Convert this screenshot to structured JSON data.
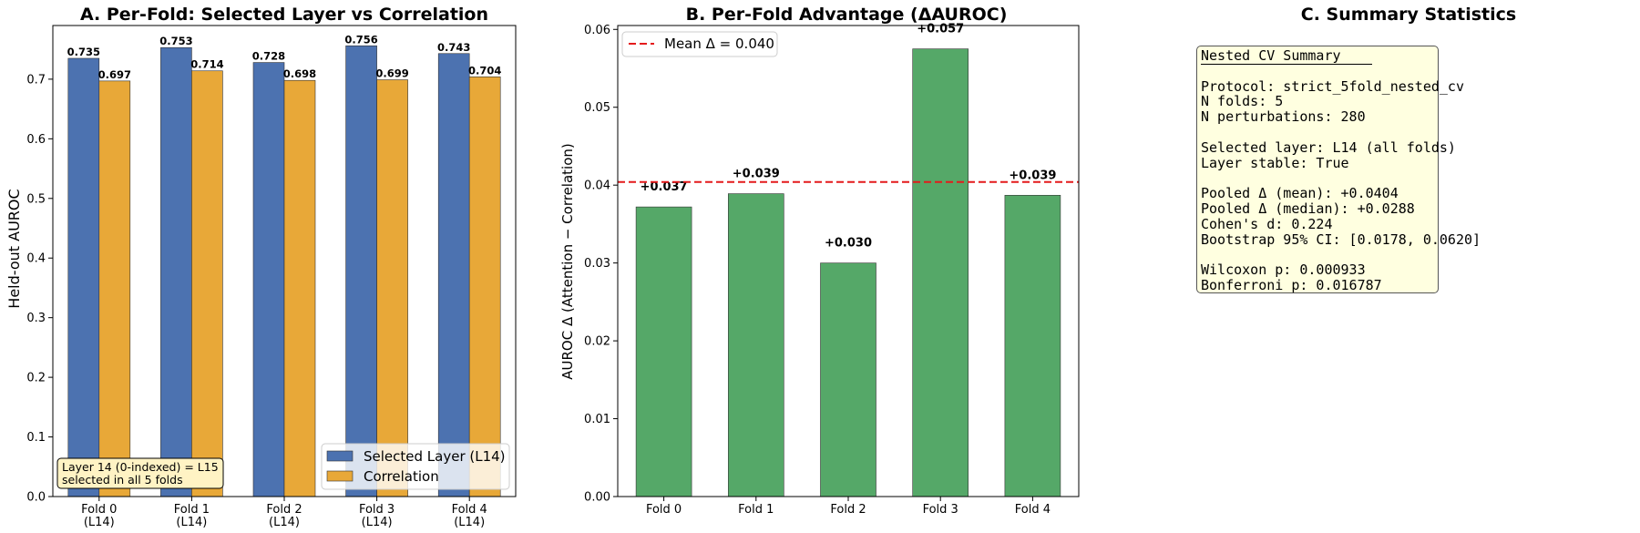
{
  "chart_data": [
    {
      "type": "bar",
      "title": "A. Per-Fold: Selected Layer vs Correlation",
      "xlabel": "",
      "ylabel": "Held-out AUROC",
      "ylim": [
        0,
        0.79
      ],
      "yticks": [
        "0.0",
        "0.1",
        "0.2",
        "0.3",
        "0.4",
        "0.5",
        "0.6",
        "0.7"
      ],
      "categories": [
        "Fold 0",
        "Fold 1",
        "Fold 2",
        "Fold 3",
        "Fold 4"
      ],
      "category_sublabels": [
        "(L14)",
        "(L14)",
        "(L14)",
        "(L14)",
        "(L14)"
      ],
      "series": [
        {
          "name": "Selected Layer (L14)",
          "color": "#4c72b0",
          "values": [
            0.735,
            0.753,
            0.728,
            0.756,
            0.743
          ],
          "labels": [
            "0.735",
            "0.753",
            "0.728",
            "0.756",
            "0.743"
          ]
        },
        {
          "name": "Correlation",
          "color": "#e8a838",
          "values": [
            0.697,
            0.714,
            0.698,
            0.699,
            0.704
          ],
          "labels": [
            "0.697",
            "0.714",
            "0.698",
            "0.699",
            "0.704"
          ]
        }
      ],
      "legend_position": "lower-right",
      "annotation": [
        "Layer 14 (0-indexed) = L15",
        "selected in all 5 folds"
      ]
    },
    {
      "type": "bar",
      "title": "B. Per-Fold Advantage (ΔAUROC)",
      "xlabel": "",
      "ylabel": "AUROC Δ (Attention − Correlation)",
      "ylim": [
        0,
        0.0605
      ],
      "yticks": [
        "0.00",
        "0.01",
        "0.02",
        "0.03",
        "0.04",
        "0.05",
        "0.06"
      ],
      "categories": [
        "Fold 0",
        "Fold 1",
        "Fold 2",
        "Fold 3",
        "Fold 4"
      ],
      "series": [
        {
          "color": "#55a868",
          "values": [
            0.0372,
            0.0389,
            0.03,
            0.0575,
            0.0387
          ],
          "labels": [
            "+0.037",
            "+0.039",
            "+0.030",
            "+0.057",
            "+0.039"
          ]
        }
      ],
      "mean_line": {
        "value": 0.0404,
        "label": "Mean Δ = 0.040",
        "color": "#e41a1c"
      },
      "legend_position": "top-left"
    }
  ],
  "summary": {
    "title": "C. Summary Statistics",
    "lines": [
      "Nested CV Summary",
      "",
      "Protocol: strict_5fold_nested_cv",
      "N folds: 5",
      "N perturbations: 280",
      "",
      "Selected layer: L14 (all folds)",
      "Layer stable: True",
      "",
      "Pooled Δ (mean): +0.0404",
      "Pooled Δ (median): +0.0288",
      "Cohen's d: 0.224",
      "Bootstrap 95% CI: [0.0178, 0.0620]",
      "",
      "Wilcoxon p: 0.000933",
      "Bonferroni p: 0.016787"
    ]
  }
}
